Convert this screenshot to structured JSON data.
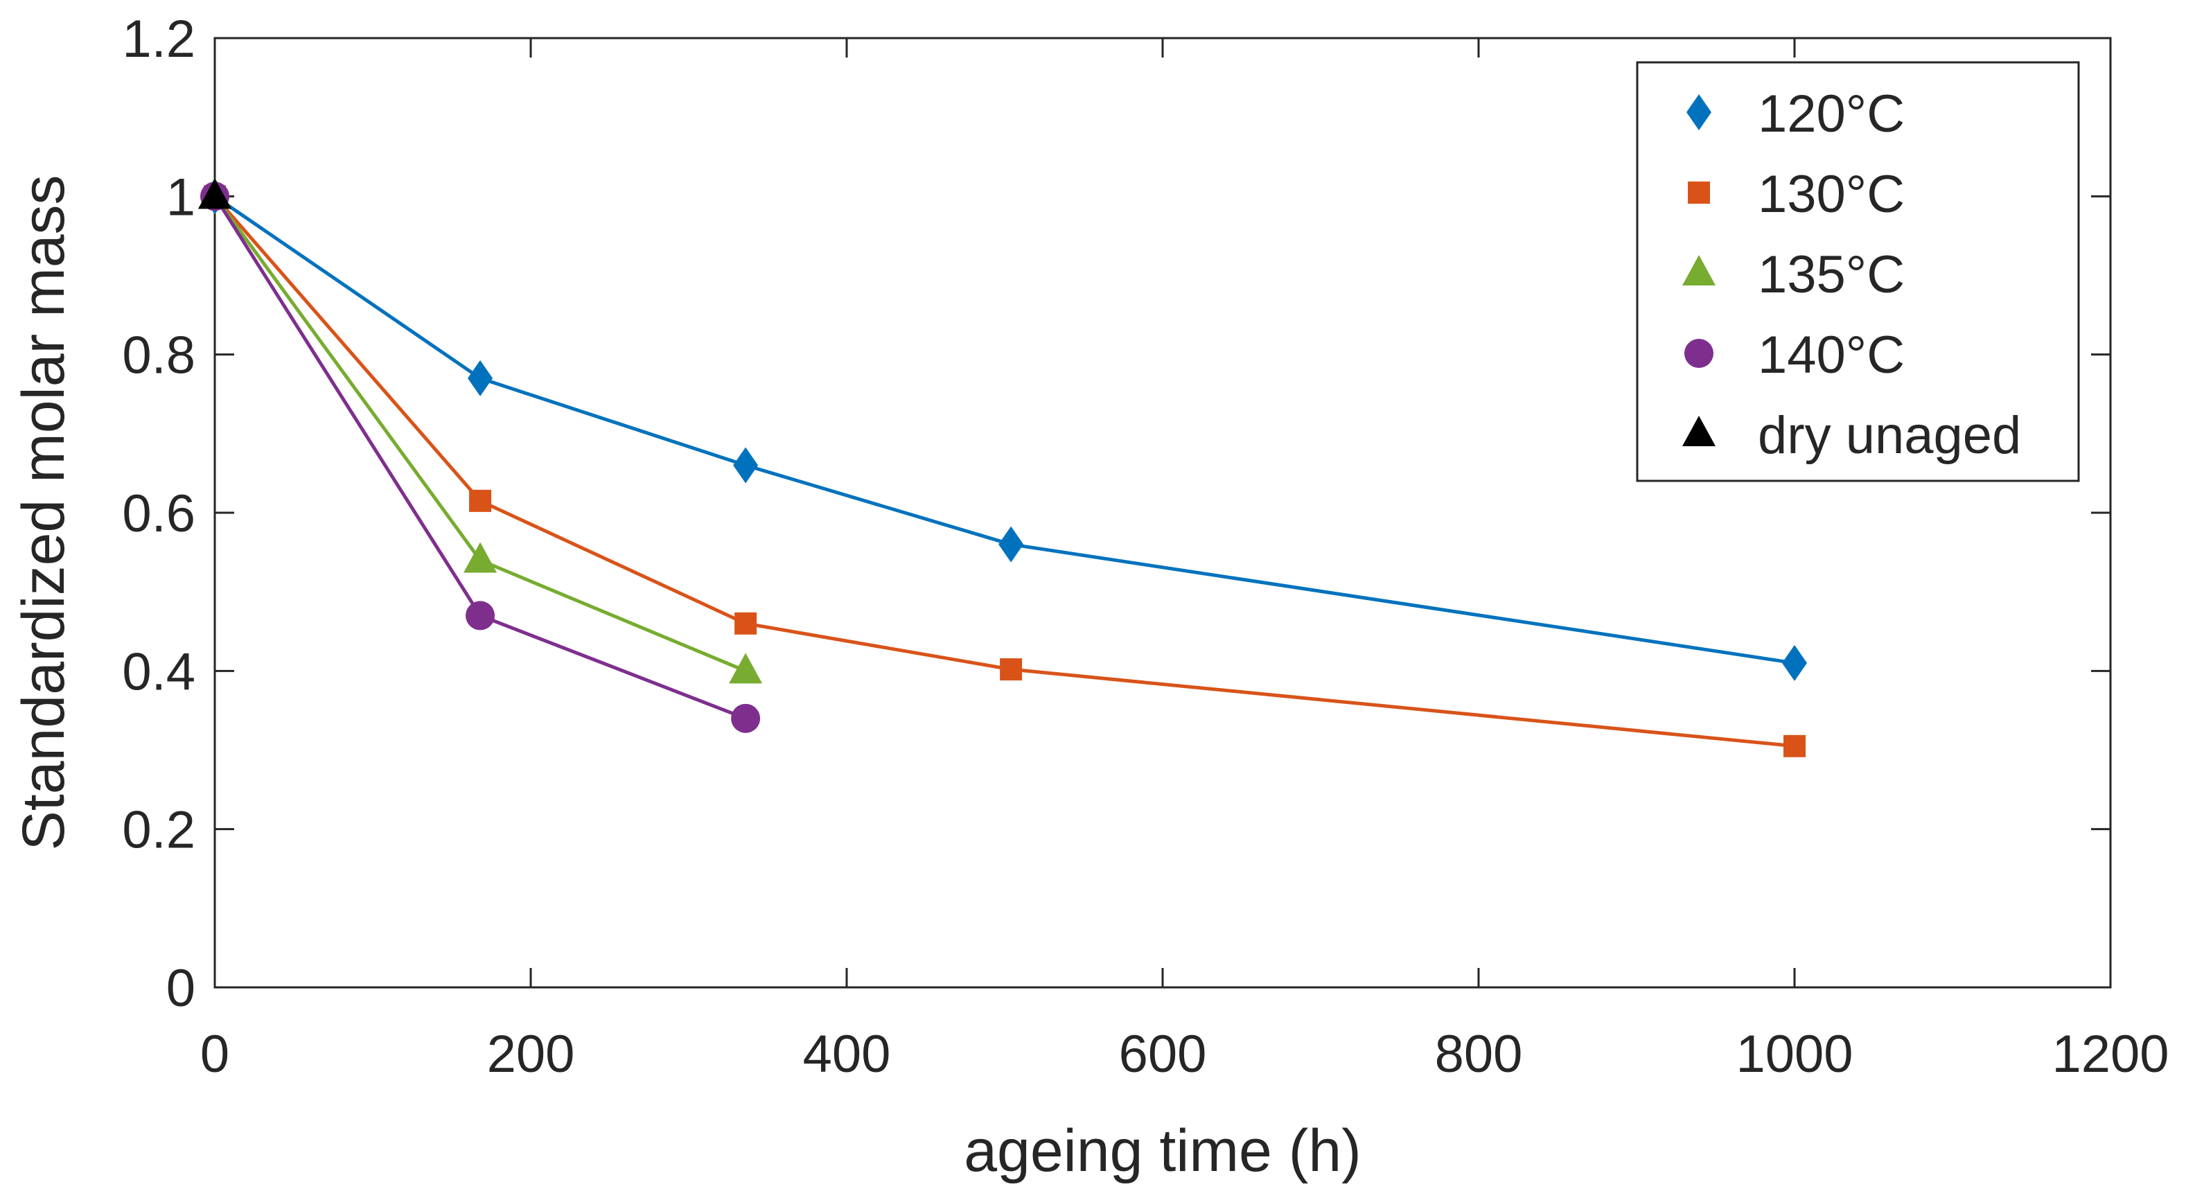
{
  "chart_data": {
    "type": "line",
    "title": "",
    "xlabel": "ageing time (h)",
    "ylabel": "Standardized molar mass",
    "xlim": [
      0,
      1200
    ],
    "ylim": [
      0,
      1.2
    ],
    "xticks": [
      0,
      200,
      400,
      600,
      800,
      1000,
      1200
    ],
    "yticks": [
      0,
      0.2,
      0.4,
      0.6,
      0.8,
      1,
      1.2
    ],
    "xtick_labels": [
      "0",
      "200",
      "400",
      "600",
      "800",
      "1000",
      "1200"
    ],
    "ytick_labels": [
      "0",
      "0.2",
      "0.4",
      "0.6",
      "0.8",
      "1",
      "1.2"
    ],
    "grid": false,
    "legend_position": "top-right",
    "series": [
      {
        "name": "120°C",
        "color": "#0072BD",
        "marker": "diamond",
        "x": [
          0,
          168,
          336,
          504,
          1000
        ],
        "y": [
          1.0,
          0.77,
          0.66,
          0.56,
          0.41
        ]
      },
      {
        "name": "130°C",
        "color": "#D95319",
        "marker": "square",
        "x": [
          0,
          168,
          336,
          504,
          1000
        ],
        "y": [
          1.0,
          0.615,
          0.46,
          0.402,
          0.305
        ]
      },
      {
        "name": "135°C",
        "color": "#77AC30",
        "marker": "triangle",
        "x": [
          0,
          168,
          336
        ],
        "y": [
          1.0,
          0.54,
          0.4
        ]
      },
      {
        "name": "140°C",
        "color": "#7E2F8E",
        "marker": "circle",
        "x": [
          0,
          168,
          336
        ],
        "y": [
          1.0,
          0.47,
          0.34
        ]
      },
      {
        "name": "dry unaged",
        "color": "#000000",
        "marker": "triangle",
        "x": [
          0
        ],
        "y": [
          1.0
        ]
      }
    ]
  }
}
